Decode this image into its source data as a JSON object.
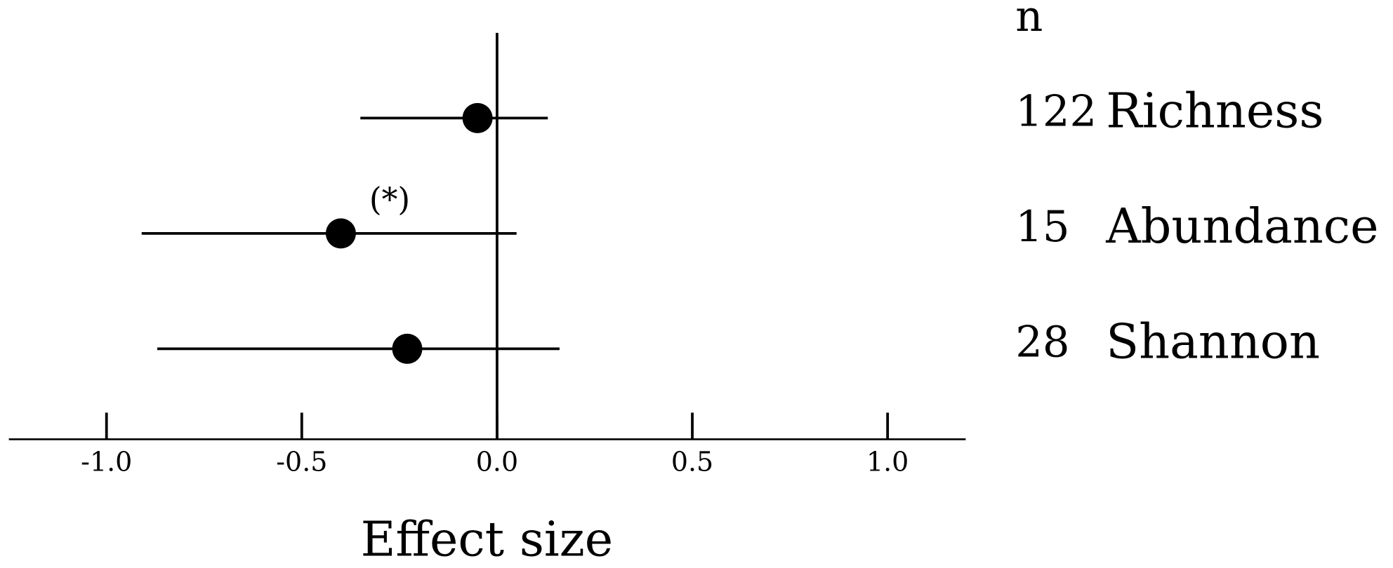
{
  "chart_data": {
    "type": "forest",
    "x_label": "Effect size",
    "n_header": "n",
    "categories": [
      "Richness",
      "Abundance",
      "Shannon"
    ],
    "n": [
      122,
      15,
      28
    ],
    "series": [
      {
        "color": "#000000",
        "values": [
          -0.05,
          -0.4,
          -0.23
        ],
        "ci_lower": [
          -0.35,
          -0.91,
          -0.87
        ],
        "ci_upper": [
          0.13,
          0.05,
          0.16
        ]
      }
    ],
    "annotations": [
      {
        "category": "Abundance",
        "text": "(*)"
      }
    ],
    "xlim": [
      -1.25,
      1.2
    ],
    "xticks": [
      {
        "value": -1,
        "label": "-1.0"
      },
      -0.5,
      {
        "value": 0,
        "label": "0.0"
      },
      0.5,
      {
        "value": 1,
        "label": "1.0"
      }
    ]
  }
}
